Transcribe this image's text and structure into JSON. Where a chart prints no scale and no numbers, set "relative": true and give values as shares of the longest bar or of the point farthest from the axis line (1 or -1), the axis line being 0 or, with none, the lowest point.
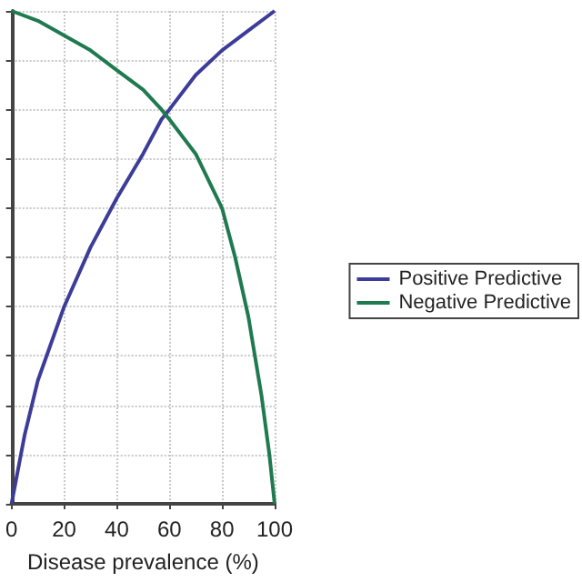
{
  "chart_data": {
    "type": "line",
    "xlabel": "Disease prevalence (%)",
    "relative": true,
    "xlim": [
      0,
      100
    ],
    "xticks": [
      0,
      20,
      40,
      60,
      80,
      100
    ],
    "series": [
      {
        "name": "Positive Predictive",
        "color": "#3d3d99",
        "x": [
          0,
          5,
          10,
          20,
          30,
          40,
          50,
          57,
          60,
          70,
          80,
          90,
          100
        ],
        "values": [
          0,
          0.14,
          0.25,
          0.4,
          0.52,
          0.62,
          0.71,
          0.78,
          0.8,
          0.87,
          0.92,
          0.96,
          1
        ]
      },
      {
        "name": "Negative Predictive",
        "color": "#1f7a4f",
        "x": [
          0,
          10,
          20,
          30,
          40,
          50,
          57,
          60,
          70,
          80,
          85,
          90,
          95,
          98,
          100
        ],
        "values": [
          1,
          0.98,
          0.95,
          0.92,
          0.88,
          0.84,
          0.8,
          0.78,
          0.71,
          0.6,
          0.5,
          0.38,
          0.22,
          0.1,
          0
        ]
      }
    ],
    "grid": true,
    "legend": "right",
    "tick_labels": "x",
    "marker": "none",
    "line_style": "solid"
  }
}
